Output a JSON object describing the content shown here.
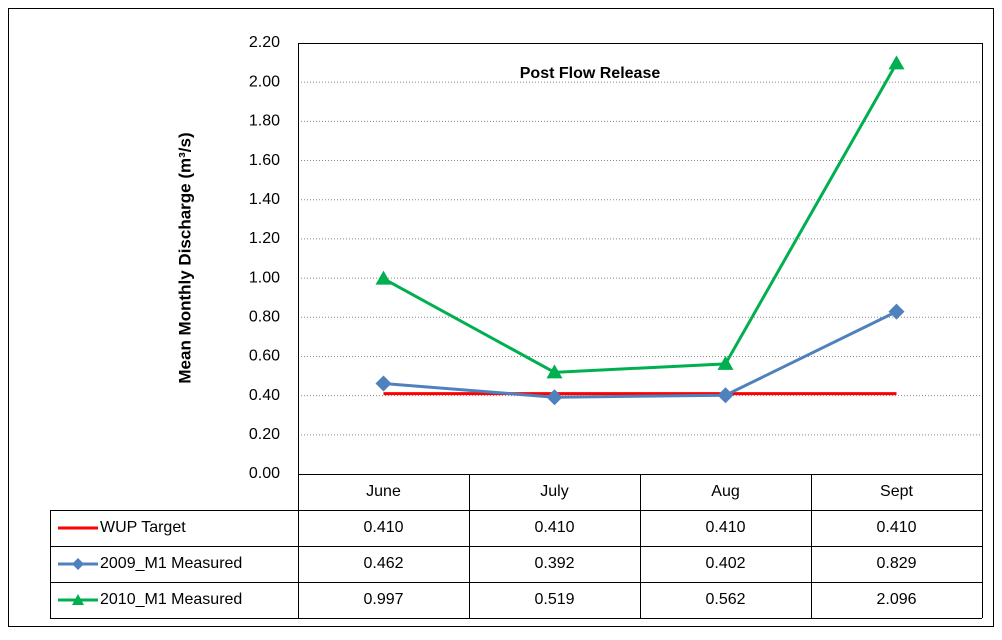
{
  "chart_data": {
    "type": "line",
    "title": "Post Flow Release",
    "y_label": "Mean Monthly Discharge (m³/s)",
    "categories": [
      "June",
      "July",
      "Aug",
      "Sept"
    ],
    "ylim": [
      0,
      2.2
    ],
    "yticks": [
      {
        "value": 0,
        "label": "0.00"
      },
      {
        "value": 0.2,
        "label": "0.20"
      },
      {
        "value": 0.4,
        "label": "0.40"
      },
      {
        "value": 0.6,
        "label": "0.60"
      },
      {
        "value": 0.8,
        "label": "0.80"
      },
      {
        "value": 1,
        "label": "1.00"
      },
      {
        "value": 1.2,
        "label": "1.20"
      },
      {
        "value": 1.4,
        "label": "1.40"
      },
      {
        "value": 1.6,
        "label": "1.60"
      },
      {
        "value": 1.8,
        "label": "1.80"
      },
      {
        "value": 2,
        "label": "2.00"
      },
      {
        "value": 2.2,
        "label": "2.20"
      }
    ],
    "grid": true,
    "series": [
      {
        "name": "WUP Target",
        "color": "#ff0000",
        "marker": "none",
        "values": [
          0.41,
          0.41,
          0.41,
          0.41
        ],
        "value_labels": [
          "0.410",
          "0.410",
          "0.410",
          "0.410"
        ]
      },
      {
        "name": "2009_M1 Measured",
        "color": "#4f81bd",
        "marker": "diamond",
        "values": [
          0.462,
          0.392,
          0.402,
          0.829
        ],
        "value_labels": [
          "0.462",
          "0.392",
          "0.402",
          "0.829"
        ]
      },
      {
        "name": "2010_M1 Measured",
        "color": "#00b050",
        "marker": "triangle",
        "values": [
          0.997,
          0.519,
          0.562,
          2.096
        ],
        "value_labels": [
          "0.997",
          "0.519",
          "0.562",
          "2.096"
        ]
      }
    ]
  }
}
